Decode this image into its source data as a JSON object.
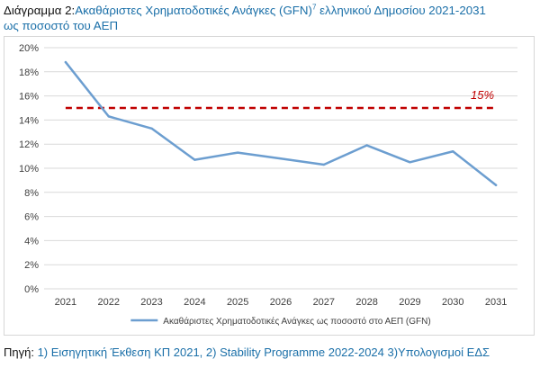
{
  "title": {
    "prefix": "Διάγραμμα 2:",
    "text1": "Ακαθάριστες Χρηματοδοτικές Ανάγκες (GFN)",
    "footnote": "7",
    "text2": " ελληνικού Δημοσίου 2021-2031",
    "line2": "ως ποσοστό του ΑΕΠ"
  },
  "source": {
    "label": "Πηγή: ",
    "text": "1) Εισηγητική Έκθεση ΚΠ 2021, 2) Stability Programme 2022-2024 3)Υπολογισμοί ΕΔΣ"
  },
  "colors": {
    "series": "#6c9ed0",
    "threshold": "#c00000",
    "title_accent": "#1a6fa8",
    "grid": "#d9d9d9"
  },
  "chart_data": {
    "type": "line",
    "categories": [
      "2021",
      "2022",
      "2023",
      "2024",
      "2025",
      "2026",
      "2027",
      "2028",
      "2029",
      "2030",
      "2031"
    ],
    "series": [
      {
        "name": "Ακαθάριστες Χρηματοδοτικές Ανάγκες ως ποσοστό στο ΑΕΠ (GFN)",
        "values": [
          18.8,
          14.3,
          13.3,
          10.7,
          11.3,
          10.8,
          10.3,
          11.9,
          10.5,
          11.4,
          8.6
        ]
      }
    ],
    "threshold": {
      "value": 15,
      "label": "15%"
    },
    "ylim": [
      0,
      20
    ],
    "yticks": [
      "0%",
      "2%",
      "4%",
      "6%",
      "8%",
      "10%",
      "12%",
      "14%",
      "16%",
      "18%",
      "20%"
    ],
    "grid": true,
    "legend": "bottom"
  }
}
